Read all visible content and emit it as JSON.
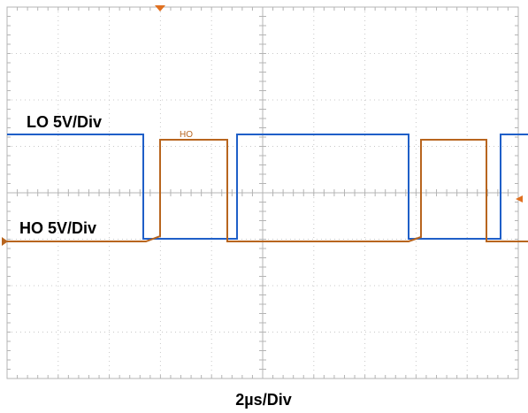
{
  "scope": {
    "lo_label": "LO 5V/Div",
    "ho_label": "HO 5V/Div",
    "ho_marker": "HO",
    "time_base": "2µs/Div"
  }
}
